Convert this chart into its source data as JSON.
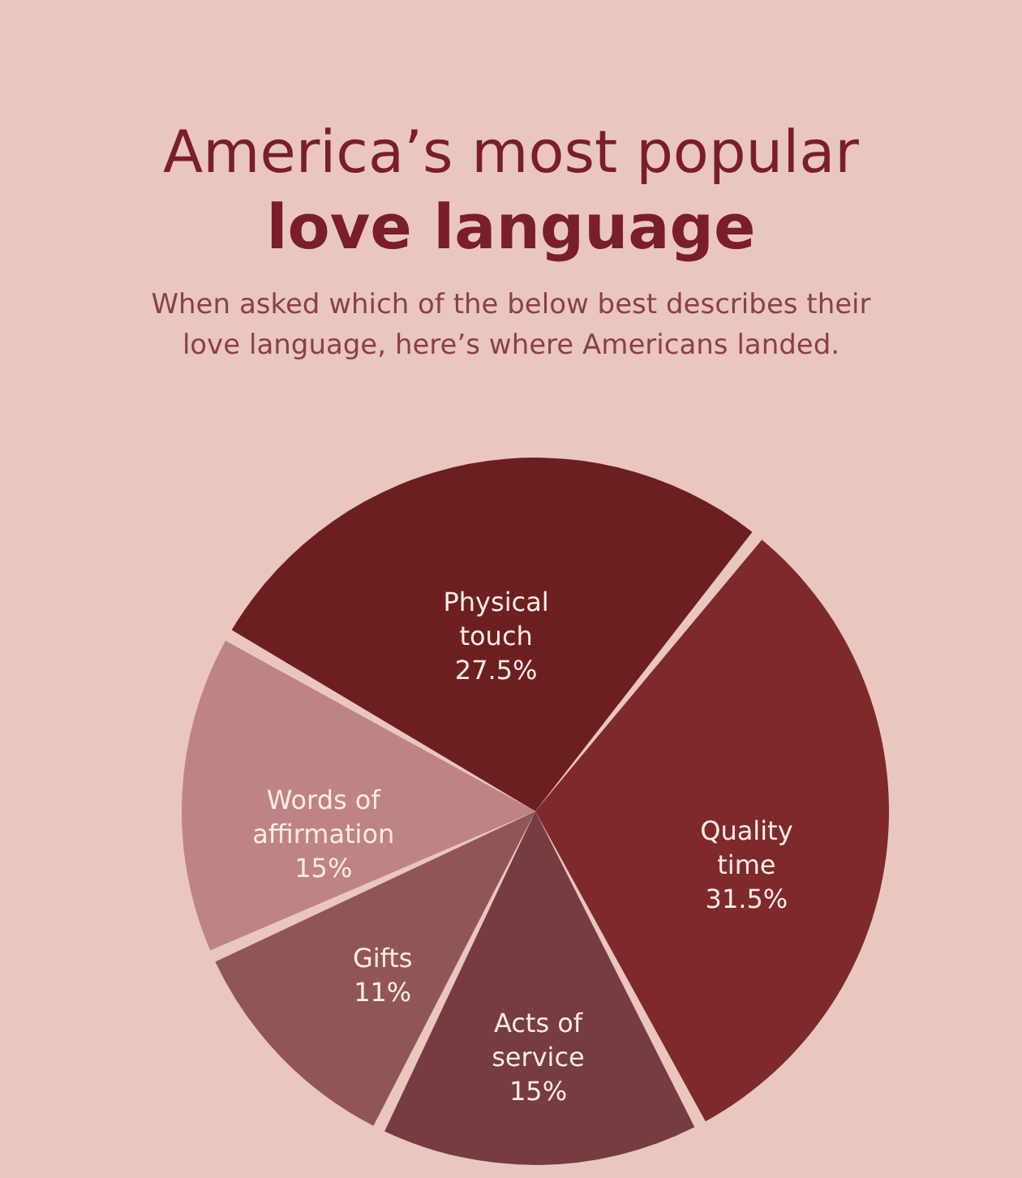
{
  "chart_data": {
    "type": "pie",
    "title": "America’s most popular love language",
    "subtitle": "When asked which of the below best describes their love language, here’s where Americans landed.",
    "categories": [
      "Physical touch",
      "Quality time",
      "Acts of service",
      "Gifts",
      "Words of affirmation"
    ],
    "values": [
      27.5,
      31.5,
      15,
      11,
      15
    ],
    "value_labels": [
      "27.5%",
      "31.5%",
      "15%",
      "11%",
      "15%"
    ],
    "colors": [
      "#6d1f1f",
      "#7e2a2a",
      "#763c42",
      "#925555",
      "#c08383"
    ]
  }
}
